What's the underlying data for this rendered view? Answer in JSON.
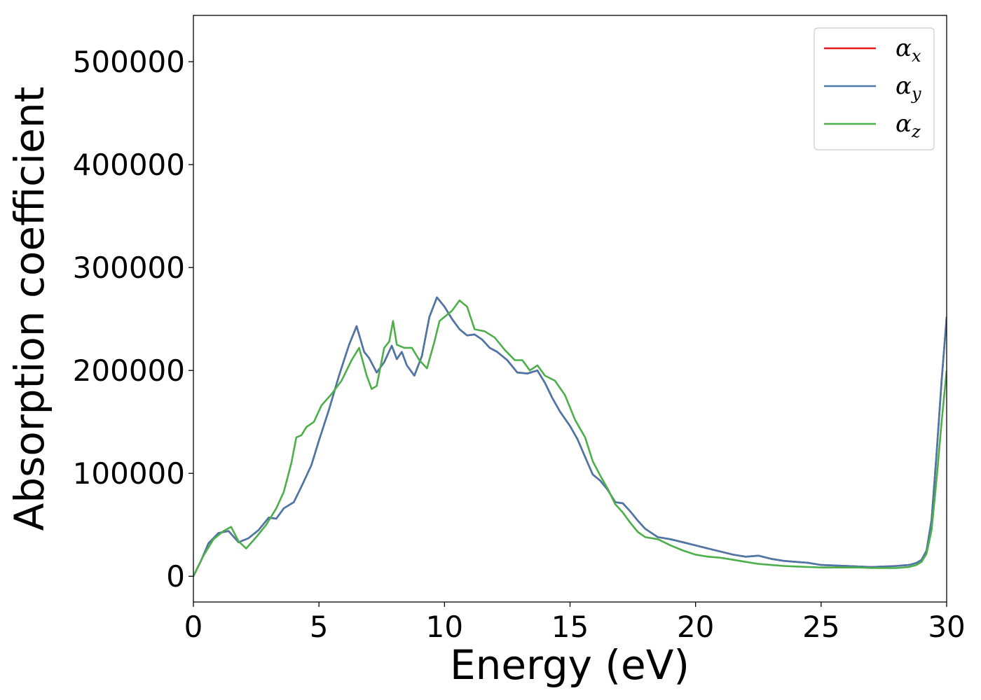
{
  "chart_data": {
    "type": "line",
    "title": "",
    "xlabel": "Energy (eV)",
    "ylabel": "Absorption coefficient",
    "xlim": [
      0,
      30
    ],
    "ylim": [
      -25000,
      545000
    ],
    "xticks": [
      0,
      5,
      10,
      15,
      20,
      25,
      30
    ],
    "yticks": [
      0,
      100000,
      200000,
      300000,
      400000,
      500000
    ],
    "grid": false,
    "legend_position": "top-right",
    "series": [
      {
        "name": "αx",
        "symbol": "α",
        "subscript": "x",
        "color": "#e41a1c",
        "x": [
          0,
          0.3,
          0.6,
          1.0,
          1.4,
          1.8,
          2.2,
          2.6,
          3.0,
          3.3,
          3.6,
          4.0,
          4.3,
          4.7,
          5.0,
          5.4,
          5.8,
          6.2,
          6.5,
          6.8,
          7.0,
          7.3,
          7.6,
          7.9,
          8.1,
          8.3,
          8.5,
          8.8,
          9.1,
          9.4,
          9.7,
          10.0,
          10.3,
          10.6,
          10.9,
          11.2,
          11.5,
          11.8,
          12.1,
          12.5,
          12.9,
          13.3,
          13.7,
          14.0,
          14.3,
          14.6,
          15.0,
          15.3,
          15.6,
          15.9,
          16.2,
          16.5,
          16.8,
          17.1,
          17.4,
          17.7,
          18.0,
          18.5,
          19.0,
          19.5,
          20.0,
          20.5,
          21.0,
          21.5,
          22.0,
          22.5,
          23.0,
          23.5,
          24.0,
          24.5,
          25.0,
          25.5,
          26.0,
          26.5,
          27.0,
          27.5,
          28.0,
          28.5,
          28.8,
          29.0,
          29.2,
          29.4,
          29.6,
          29.8,
          30.0
        ],
        "y": [
          0,
          15000,
          32000,
          42000,
          44000,
          33000,
          37000,
          45000,
          57000,
          56000,
          66000,
          72000,
          87000,
          108000,
          132000,
          162000,
          195000,
          225000,
          243000,
          218000,
          212000,
          198000,
          208000,
          224000,
          211000,
          218000,
          205000,
          195000,
          214000,
          252000,
          271000,
          262000,
          250000,
          240000,
          234000,
          235000,
          230000,
          222000,
          218000,
          210000,
          198000,
          197000,
          200000,
          188000,
          173000,
          160000,
          146000,
          133000,
          116000,
          99000,
          93000,
          84000,
          72000,
          71000,
          63000,
          54000,
          46000,
          38000,
          36000,
          33000,
          30000,
          27000,
          24000,
          21000,
          19000,
          20000,
          17000,
          15000,
          14000,
          13000,
          11000,
          10500,
          10000,
          9500,
          9000,
          9500,
          10000,
          11000,
          13000,
          16000,
          25000,
          55000,
          120000,
          190000,
          252000
        ]
      },
      {
        "name": "αy",
        "symbol": "α",
        "subscript": "y",
        "color": "#4a79a9",
        "x": [
          0,
          0.3,
          0.6,
          1.0,
          1.4,
          1.8,
          2.2,
          2.6,
          3.0,
          3.3,
          3.6,
          4.0,
          4.3,
          4.7,
          5.0,
          5.4,
          5.8,
          6.2,
          6.5,
          6.8,
          7.0,
          7.3,
          7.6,
          7.9,
          8.1,
          8.3,
          8.5,
          8.8,
          9.1,
          9.4,
          9.7,
          10.0,
          10.3,
          10.6,
          10.9,
          11.2,
          11.5,
          11.8,
          12.1,
          12.5,
          12.9,
          13.3,
          13.7,
          14.0,
          14.3,
          14.6,
          15.0,
          15.3,
          15.6,
          15.9,
          16.2,
          16.5,
          16.8,
          17.1,
          17.4,
          17.7,
          18.0,
          18.5,
          19.0,
          19.5,
          20.0,
          20.5,
          21.0,
          21.5,
          22.0,
          22.5,
          23.0,
          23.5,
          24.0,
          24.5,
          25.0,
          25.5,
          26.0,
          26.5,
          27.0,
          27.5,
          28.0,
          28.5,
          28.8,
          29.0,
          29.2,
          29.4,
          29.6,
          29.8,
          30.0
        ],
        "y": [
          0,
          15000,
          32000,
          42000,
          44000,
          33000,
          37000,
          45000,
          57000,
          56000,
          66000,
          72000,
          87000,
          108000,
          132000,
          162000,
          195000,
          225000,
          243000,
          218000,
          212000,
          198000,
          208000,
          224000,
          211000,
          218000,
          205000,
          195000,
          214000,
          252000,
          271000,
          262000,
          250000,
          240000,
          234000,
          235000,
          230000,
          222000,
          218000,
          210000,
          198000,
          197000,
          200000,
          188000,
          173000,
          160000,
          146000,
          133000,
          116000,
          99000,
          93000,
          84000,
          72000,
          71000,
          63000,
          54000,
          46000,
          38000,
          36000,
          33000,
          30000,
          27000,
          24000,
          21000,
          19000,
          20000,
          17000,
          15000,
          14000,
          13000,
          11000,
          10500,
          10000,
          9500,
          9000,
          9500,
          10000,
          11000,
          13000,
          16000,
          25000,
          55000,
          120000,
          190000,
          252000
        ]
      },
      {
        "name": "αz",
        "symbol": "α",
        "subscript": "z",
        "color": "#4daf4a",
        "x": [
          0,
          0.4,
          0.8,
          1.2,
          1.5,
          1.8,
          2.1,
          2.5,
          2.9,
          3.3,
          3.6,
          3.9,
          4.1,
          4.3,
          4.5,
          4.8,
          5.1,
          5.5,
          5.9,
          6.3,
          6.6,
          6.9,
          7.1,
          7.3,
          7.6,
          7.8,
          7.95,
          8.1,
          8.4,
          8.7,
          9.0,
          9.3,
          9.6,
          9.8,
          10.0,
          10.3,
          10.6,
          10.9,
          11.2,
          11.6,
          12.0,
          12.4,
          12.8,
          13.1,
          13.4,
          13.7,
          14.0,
          14.4,
          14.8,
          15.2,
          15.6,
          15.9,
          16.2,
          16.5,
          16.8,
          17.1,
          17.4,
          17.7,
          18.0,
          18.5,
          19.0,
          19.5,
          20.0,
          20.5,
          21.0,
          21.5,
          22.0,
          22.5,
          23.0,
          23.5,
          24.0,
          24.5,
          25.0,
          25.5,
          26.0,
          26.5,
          27.0,
          27.5,
          28.0,
          28.5,
          28.8,
          29.0,
          29.2,
          29.4,
          29.6,
          29.8,
          30.0
        ],
        "y": [
          0,
          20000,
          36000,
          44000,
          48000,
          34000,
          27000,
          38000,
          50000,
          66000,
          82000,
          110000,
          135000,
          137000,
          145000,
          150000,
          166000,
          177000,
          190000,
          210000,
          222000,
          195000,
          182000,
          185000,
          222000,
          228000,
          248000,
          225000,
          222000,
          222000,
          210000,
          202000,
          228000,
          248000,
          252000,
          258000,
          268000,
          262000,
          240000,
          238000,
          232000,
          220000,
          210000,
          210000,
          200000,
          205000,
          195000,
          190000,
          176000,
          152000,
          135000,
          112000,
          98000,
          85000,
          70000,
          62000,
          52000,
          43000,
          38000,
          36000,
          30000,
          25000,
          21000,
          19000,
          18000,
          16000,
          14000,
          12000,
          11000,
          10000,
          9500,
          9000,
          8500,
          8500,
          8500,
          8500,
          8000,
          8000,
          8000,
          9000,
          11000,
          14000,
          22000,
          45000,
          95000,
          150000,
          200000
        ]
      }
    ]
  }
}
